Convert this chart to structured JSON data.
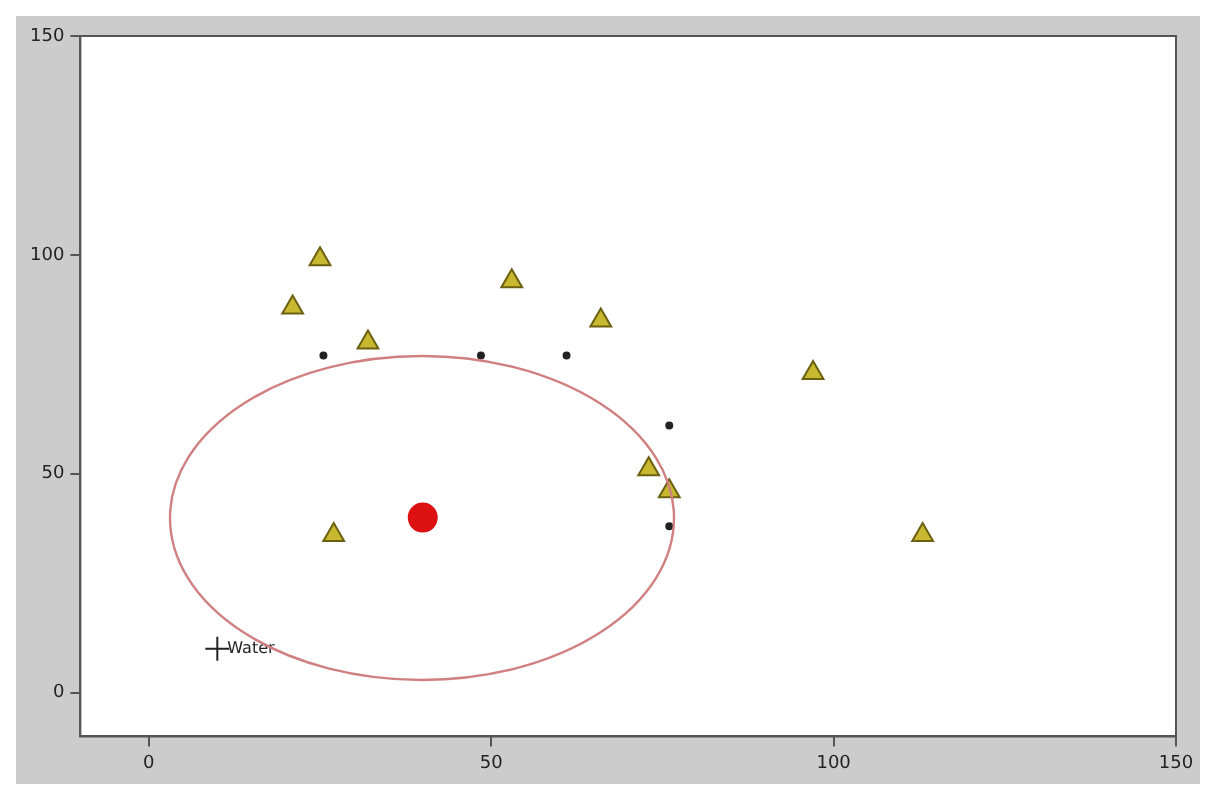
{
  "chart_data": {
    "type": "scatter",
    "xlim": [
      -10,
      150
    ],
    "ylim": [
      -10,
      150
    ],
    "xticks": [
      0,
      50,
      100,
      150
    ],
    "yticks": [
      0,
      50,
      100,
      150
    ],
    "grid": false,
    "legend": false,
    "series": [
      {
        "type": "scatter",
        "color": "#c8b830",
        "marker": "triangle",
        "x": [
          25,
          21,
          32,
          53,
          66,
          97,
          73,
          76,
          27,
          113
        ],
        "values": [
          99,
          88,
          80,
          94,
          85,
          73,
          51,
          46,
          36,
          36
        ]
      },
      {
        "type": "scatter",
        "color": "#222222",
        "marker": "circle",
        "x": [
          25.5,
          48.5,
          61,
          76,
          76
        ],
        "values": [
          77,
          77,
          77,
          61,
          38
        ]
      },
      {
        "type": "scatter",
        "color": "#dd1111",
        "marker": "circle",
        "x": [
          40
        ],
        "values": [
          40
        ]
      },
      {
        "type": "scatter",
        "color": "#222222",
        "marker": "cross",
        "x": [
          10
        ],
        "values": [
          10
        ]
      }
    ],
    "annotations": [
      {
        "text": "Water",
        "x": 10,
        "y": 10
      }
    ]
  }
}
